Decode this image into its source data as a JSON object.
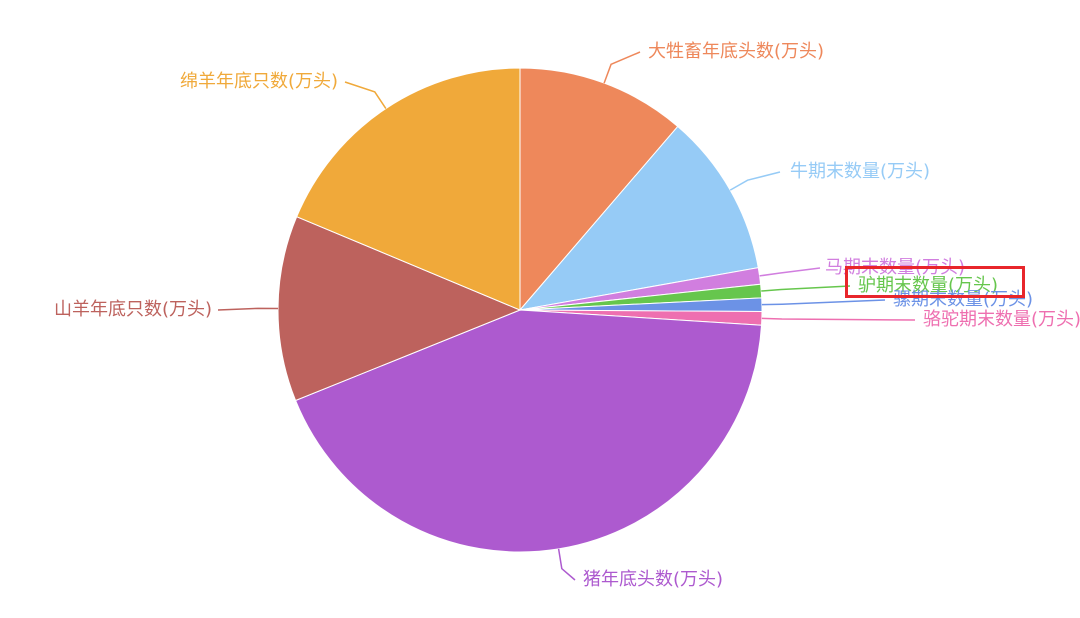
{
  "chart_data": {
    "type": "pie",
    "title": "",
    "start_angle": "top",
    "direction": "clockwise",
    "slices": [
      {
        "label": "大牲畜年底头数(万头)",
        "value": 11.3,
        "color": "#EE885B"
      },
      {
        "label": "牛期末数量(万头)",
        "value": 10.9,
        "color": "#96CBF6"
      },
      {
        "label": "马期末数量(万头)",
        "value": 1.1,
        "color": "#D17EDF"
      },
      {
        "label": "驴期末数量(万头)",
        "value": 0.9,
        "color": "#66C64D"
      },
      {
        "label": "骡期末数量(万头)",
        "value": 0.9,
        "color": "#6C92E6"
      },
      {
        "label": "骆驼期末数量(万头)",
        "value": 0.9,
        "color": "#EE6FB0"
      },
      {
        "label": "猪年底头数(万头)",
        "value": 42.9,
        "color": "#AD5ACF"
      },
      {
        "label": "山羊年底只数(万头)",
        "value": 12.4,
        "color": "#BD625D"
      },
      {
        "label": "绵羊年底只数(万头)",
        "value": 18.7,
        "color": "#F0A93A"
      }
    ],
    "highlight": {
      "label": "驴期末数量(万头)",
      "color": "#E8262B"
    }
  }
}
